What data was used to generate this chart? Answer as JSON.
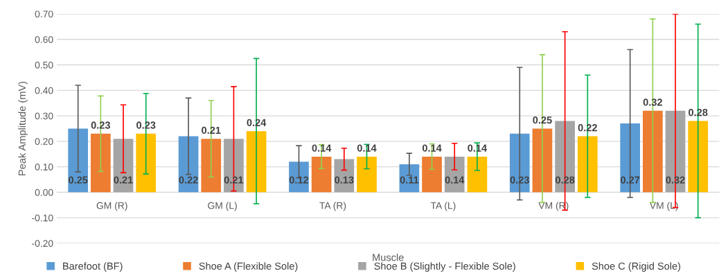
{
  "chart_data": {
    "type": "bar",
    "xlabel": "Muscle",
    "ylabel": "Peak Amplitude (mV)",
    "categories": [
      "GM (R)",
      "GM (L)",
      "TA (R)",
      "TA (L)",
      "VM (R)",
      "VM (L)"
    ],
    "series": [
      {
        "name": "Barefoot (BF)",
        "color": "#5b9bd5",
        "values": [
          0.25,
          0.22,
          0.12,
          0.11,
          0.23,
          0.27
        ],
        "errors": [
          0.17,
          0.15,
          0.063,
          0.043,
          0.26,
          0.29
        ]
      },
      {
        "name": "Shoe A (Flexible Sole)",
        "color": "#ed7d31",
        "values": [
          0.23,
          0.21,
          0.14,
          0.14,
          0.25,
          0.32
        ],
        "errors": [
          0.148,
          0.15,
          0.047,
          0.05,
          0.29,
          0.36
        ]
      },
      {
        "name": "Shoe B (Slightly - Flexible Sole)",
        "color": "#a5a5a5",
        "values": [
          0.21,
          0.21,
          0.13,
          0.14,
          0.28,
          0.32
        ],
        "errors": [
          0.133,
          0.205,
          0.043,
          0.052,
          0.35,
          0.38
        ]
      },
      {
        "name": "Shoe C (Rigid Sole)",
        "color": "#ffc000",
        "values": [
          0.23,
          0.24,
          0.14,
          0.14,
          0.22,
          0.28
        ],
        "errors": [
          0.158,
          0.285,
          0.048,
          0.054,
          0.24,
          0.38
        ]
      }
    ],
    "ylim": [
      -0.2,
      0.7
    ],
    "yticks": [
      {
        "value": -0.2,
        "label": "-0.20"
      },
      {
        "value": -0.1,
        "label": "-0.10"
      },
      {
        "value": 0,
        "label": "0.00"
      },
      {
        "value": 0.1,
        "label": "0.10"
      },
      {
        "value": 0.2,
        "label": "0.20"
      },
      {
        "value": 0.3,
        "label": "0.30"
      },
      {
        "value": 0.4,
        "label": "0.40"
      },
      {
        "value": 0.5,
        "label": "0.50"
      },
      {
        "value": 0.6,
        "label": "0.60"
      },
      {
        "value": 0.7,
        "label": "0.70"
      }
    ],
    "grid": "y",
    "legend": "bottom",
    "data_labels": true
  }
}
